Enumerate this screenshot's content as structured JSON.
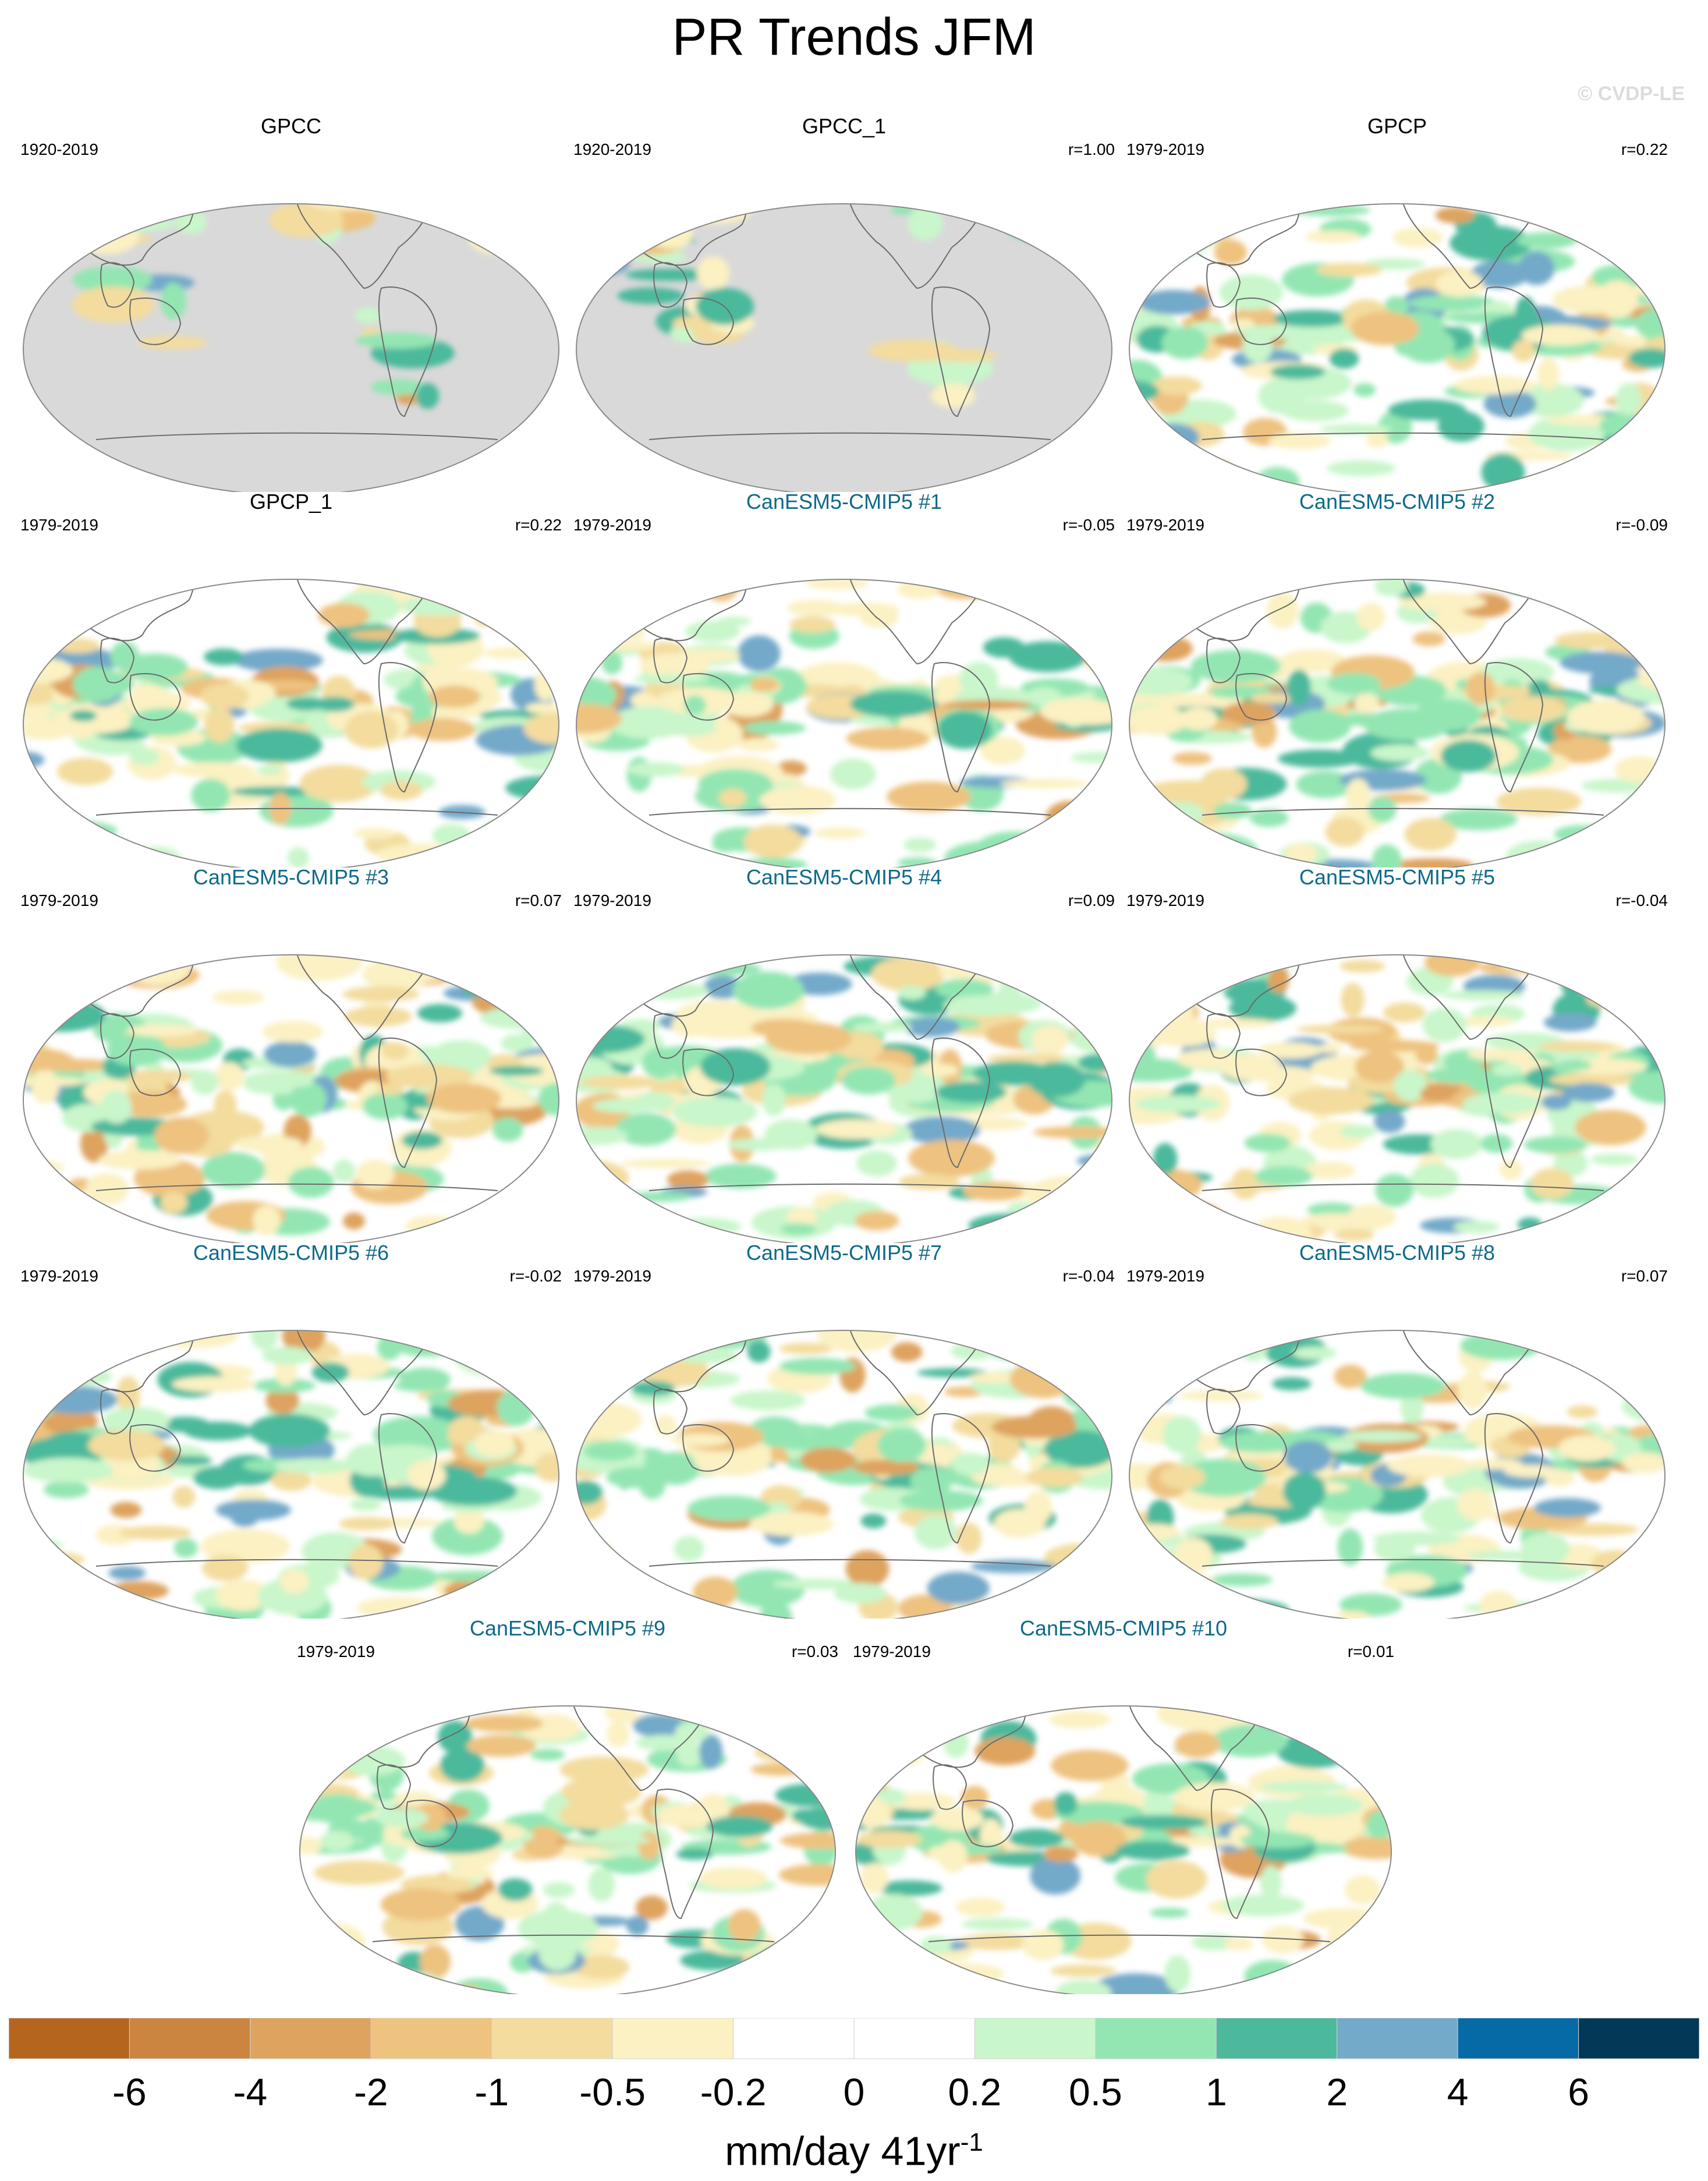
{
  "title": "PR Trends JFM",
  "watermark": "© CVDP-LE",
  "chart_data": {
    "type": "heatmap",
    "title": "PR Trends JFM",
    "projection": "Robinson, Pacific-centered global maps",
    "units_label": "mm/day 41yr",
    "units_exponent": "-1",
    "panels": [
      {
        "name": "GPCC",
        "period": "1920-2019",
        "r": "",
        "kind": "obs",
        "land_only": true
      },
      {
        "name": "GPCC_1",
        "period": "1920-2019",
        "r": "r=1.00",
        "kind": "obs",
        "land_only": true
      },
      {
        "name": "GPCP",
        "period": "1979-2019",
        "r": "r=0.22",
        "kind": "obs",
        "land_only": false
      },
      {
        "name": "GPCP_1",
        "period": "1979-2019",
        "r": "r=0.22",
        "kind": "obs",
        "land_only": false
      },
      {
        "name": "CanESM5-CMIP5 #1",
        "period": "1979-2019",
        "r": "r=-0.05",
        "kind": "model",
        "land_only": false
      },
      {
        "name": "CanESM5-CMIP5 #2",
        "period": "1979-2019",
        "r": "r=-0.09",
        "kind": "model",
        "land_only": false
      },
      {
        "name": "CanESM5-CMIP5 #3",
        "period": "1979-2019",
        "r": "r=0.07",
        "kind": "model",
        "land_only": false
      },
      {
        "name": "CanESM5-CMIP5 #4",
        "period": "1979-2019",
        "r": "r=0.09",
        "kind": "model",
        "land_only": false
      },
      {
        "name": "CanESM5-CMIP5 #5",
        "period": "1979-2019",
        "r": "r=-0.04",
        "kind": "model",
        "land_only": false
      },
      {
        "name": "CanESM5-CMIP5 #6",
        "period": "1979-2019",
        "r": "r=-0.02",
        "kind": "model",
        "land_only": false
      },
      {
        "name": "CanESM5-CMIP5 #7",
        "period": "1979-2019",
        "r": "r=-0.04",
        "kind": "model",
        "land_only": false
      },
      {
        "name": "CanESM5-CMIP5 #8",
        "period": "1979-2019",
        "r": "r=0.07",
        "kind": "model",
        "land_only": false
      },
      {
        "name": "CanESM5-CMIP5 #9",
        "period": "1979-2019",
        "r": "r=0.03",
        "kind": "model",
        "land_only": false
      },
      {
        "name": "CanESM5-CMIP5 #10",
        "period": "1979-2019",
        "r": "r=0.01",
        "kind": "model",
        "land_only": false
      }
    ],
    "colorbar": {
      "ticks": [
        "-6",
        "-4",
        "-2",
        "-1",
        "-0.5",
        "-0.2",
        "0",
        "0.2",
        "0.5",
        "1",
        "2",
        "4",
        "6"
      ],
      "colors": [
        "#b5651d",
        "#cc8540",
        "#dea35e",
        "#eec27f",
        "#f3dc9e",
        "#fbf1c3",
        "#ffffff",
        "#ffffff",
        "#c9f6cb",
        "#93e6b2",
        "#4cb99c",
        "#73a9c9",
        "#056aa6",
        "#043857"
      ]
    }
  }
}
